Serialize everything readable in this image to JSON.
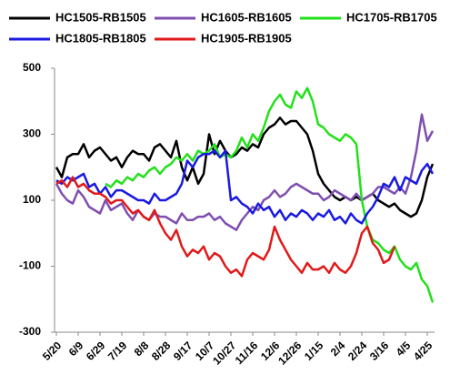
{
  "chart_data": {
    "type": "line",
    "categories": [
      "5/20",
      null,
      null,
      null,
      "6/9",
      null,
      null,
      null,
      "6/29",
      null,
      null,
      null,
      "7/19",
      null,
      null,
      null,
      "8/8",
      null,
      null,
      null,
      "8/28",
      null,
      null,
      null,
      "9/17",
      null,
      null,
      null,
      "10/7",
      null,
      null,
      null,
      "10/27",
      null,
      null,
      null,
      "11/16",
      null,
      null,
      null,
      "12/6",
      null,
      null,
      null,
      "12/26",
      null,
      null,
      null,
      "1/15",
      null,
      null,
      null,
      "2/4",
      null,
      null,
      null,
      "2/24",
      null,
      null,
      null,
      "3/16",
      null,
      null,
      null,
      "4/5",
      null,
      null,
      null,
      "4/25",
      null
    ],
    "series": [
      {
        "name": "HC1505-RB1505",
        "color": "#000000",
        "values": [
          200,
          170,
          230,
          240,
          240,
          270,
          230,
          250,
          260,
          240,
          220,
          230,
          200,
          230,
          250,
          240,
          240,
          220,
          260,
          270,
          250,
          230,
          280,
          200,
          160,
          200,
          150,
          180,
          300,
          240,
          280,
          250,
          230,
          240,
          260,
          250,
          270,
          260,
          300,
          320,
          330,
          350,
          330,
          340,
          340,
          320,
          300,
          250,
          180,
          150,
          130,
          110,
          100,
          110,
          100,
          110,
          100,
          110,
          120,
          100,
          90,
          80,
          90,
          70,
          60,
          50,
          60,
          100,
          170,
          210
        ]
      },
      {
        "name": "HC1605-RB1605",
        "color": "#7f4fb0",
        "values": [
          150,
          120,
          100,
          90,
          130,
          110,
          80,
          70,
          60,
          100,
          70,
          80,
          90,
          60,
          40,
          70,
          50,
          40,
          60,
          50,
          50,
          40,
          30,
          60,
          40,
          40,
          50,
          50,
          60,
          40,
          50,
          30,
          20,
          10,
          40,
          60,
          80,
          70,
          100,
          110,
          130,
          110,
          120,
          140,
          150,
          140,
          130,
          120,
          120,
          100,
          110,
          130,
          120,
          110,
          100,
          120,
          100,
          110,
          120,
          140,
          140,
          130,
          120,
          140,
          120,
          170,
          250,
          360,
          280,
          310
        ]
      },
      {
        "name": "HC1705-RB1705",
        "color": "#22e01a",
        "values": [
          null,
          null,
          null,
          null,
          null,
          null,
          null,
          null,
          null,
          150,
          140,
          160,
          150,
          170,
          160,
          180,
          170,
          190,
          200,
          180,
          200,
          210,
          230,
          220,
          240,
          220,
          250,
          240,
          250,
          270,
          230,
          240,
          230,
          250,
          290,
          260,
          300,
          280,
          320,
          370,
          400,
          420,
          390,
          380,
          430,
          410,
          440,
          400,
          330,
          320,
          300,
          290,
          280,
          300,
          290,
          270,
          100,
          20,
          -20,
          -30,
          -50,
          -60,
          -40,
          -80,
          -100,
          -110,
          -90,
          -140,
          -160,
          -210
        ]
      },
      {
        "name": "HC1805-RB1805",
        "color": "#1a1ae0",
        "values": [
          160,
          150,
          170,
          160,
          170,
          180,
          140,
          150,
          120,
          140,
          110,
          130,
          130,
          120,
          110,
          100,
          100,
          90,
          120,
          100,
          100,
          110,
          120,
          150,
          220,
          200,
          230,
          240,
          240,
          250,
          230,
          250,
          100,
          110,
          90,
          80,
          60,
          90,
          70,
          80,
          50,
          70,
          40,
          60,
          50,
          70,
          60,
          40,
          60,
          50,
          70,
          40,
          50,
          30,
          60,
          40,
          30,
          60,
          80,
          110,
          150,
          140,
          170,
          130,
          170,
          160,
          150,
          190,
          210,
          180
        ]
      },
      {
        "name": "HC1905-RB1905",
        "color": "#e01a1a",
        "values": [
          150,
          160,
          140,
          170,
          140,
          150,
          130,
          120,
          120,
          110,
          90,
          100,
          100,
          80,
          60,
          70,
          50,
          40,
          70,
          30,
          0,
          -20,
          10,
          -40,
          -70,
          -50,
          -60,
          -40,
          -80,
          -60,
          -70,
          -100,
          -120,
          -110,
          -130,
          -80,
          -60,
          -70,
          -80,
          -50,
          20,
          -20,
          -50,
          -80,
          -100,
          -120,
          -90,
          -110,
          -110,
          -100,
          -120,
          -90,
          -110,
          -120,
          -100,
          -60,
          0,
          20,
          -30,
          -50,
          -90,
          -80,
          -40,
          null,
          null,
          null,
          null,
          null,
          null,
          null
        ]
      }
    ],
    "ylim": [
      -300,
      500
    ],
    "yticks": [
      -300,
      -100,
      100,
      300,
      500
    ]
  }
}
